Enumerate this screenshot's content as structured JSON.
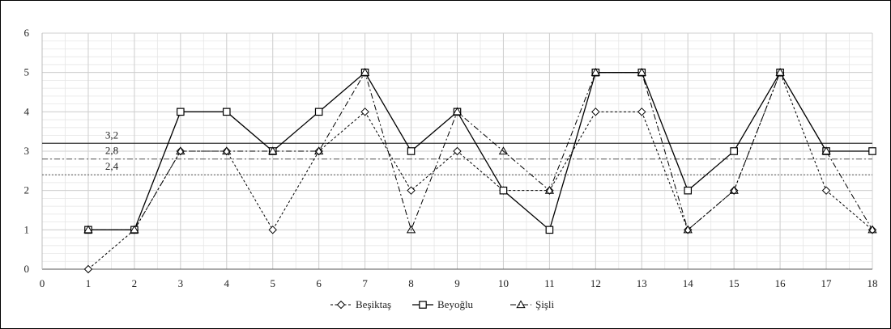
{
  "chart_data": {
    "type": "line",
    "title": "",
    "xlabel": "",
    "ylabel": "",
    "x": [
      1,
      2,
      3,
      4,
      5,
      6,
      7,
      8,
      9,
      10,
      11,
      12,
      13,
      14,
      15,
      16,
      17,
      18
    ],
    "xlim": [
      0,
      18
    ],
    "ylim": [
      0,
      6
    ],
    "x_ticks": [
      "0",
      "1",
      "2",
      "3",
      "4",
      "5",
      "6",
      "7",
      "8",
      "9",
      "10",
      "11",
      "12",
      "13",
      "14",
      "15",
      "16",
      "17",
      "18"
    ],
    "y_ticks": [
      "0",
      "1",
      "2",
      "3",
      "4",
      "5",
      "6"
    ],
    "grid": true,
    "legend_position": "bottom-center",
    "series": [
      {
        "name": "Beşiktaş",
        "style": "dashed",
        "marker": "diamond",
        "color": "#000000",
        "values": [
          0,
          1,
          3,
          3,
          1,
          3,
          4,
          2,
          3,
          2,
          2,
          4,
          4,
          1,
          2,
          5,
          2,
          1
        ]
      },
      {
        "name": "Beyoğlu",
        "style": "solid",
        "marker": "square",
        "color": "#000000",
        "values": [
          1,
          1,
          4,
          4,
          3,
          4,
          5,
          3,
          4,
          2,
          1,
          5,
          5,
          2,
          3,
          5,
          3,
          3
        ]
      },
      {
        "name": "Şişli",
        "style": "dashdot",
        "marker": "triangle",
        "color": "#000000",
        "values": [
          1,
          1,
          3,
          3,
          3,
          3,
          5,
          1,
          4,
          3,
          2,
          5,
          5,
          1,
          2,
          5,
          3,
          1
        ]
      }
    ],
    "reference_lines": [
      {
        "value": 3.2,
        "label": "3,2",
        "style": "solid"
      },
      {
        "value": 2.8,
        "label": "2,8",
        "style": "dashdot"
      },
      {
        "value": 2.4,
        "label": "2,4",
        "style": "dotted"
      }
    ]
  }
}
